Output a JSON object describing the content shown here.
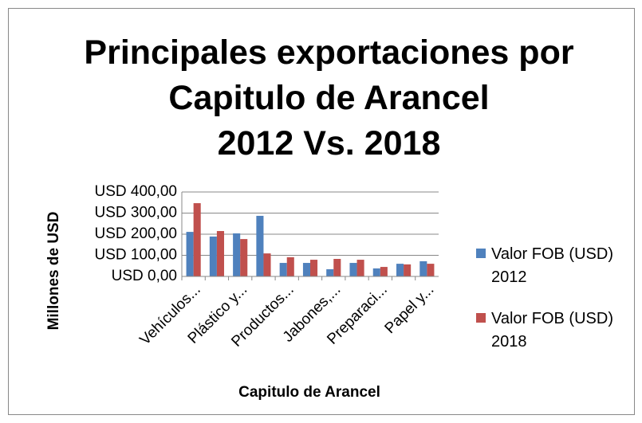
{
  "chart_data": {
    "type": "bar",
    "title": "Principales exportaciones por\nCapitulo de Arancel\n2012 Vs. 2018",
    "y_label": "Millones de USD",
    "x_label": "Capitulo de Arancel",
    "categories": [
      "Vehículos...",
      null,
      "Plástico y...",
      null,
      "Productos...",
      null,
      "Jabones,...",
      null,
      "Preparaci...",
      null,
      "Papel y..."
    ],
    "series": [
      {
        "name": "Valor FOB (USD) 2012",
        "color": "#4f81bd",
        "values": [
          211,
          189,
          204,
          287,
          64,
          64,
          34,
          64,
          38,
          60,
          72
        ]
      },
      {
        "name": "Valor FOB (USD) 2018",
        "color": "#c0504d",
        "values": [
          347,
          215,
          177,
          109,
          91,
          79,
          83,
          79,
          45,
          57,
          60
        ]
      }
    ],
    "ylim": [
      0,
      400
    ],
    "yticks": [
      {
        "value": 0,
        "label": "USD 0,00"
      },
      {
        "value": 100,
        "label": "USD 100,00"
      },
      {
        "value": 200,
        "label": "USD 200,00"
      },
      {
        "value": 300,
        "label": "USD 300,00"
      },
      {
        "value": 400,
        "label": "USD 400,00"
      }
    ],
    "grid": true,
    "legend": "right"
  }
}
